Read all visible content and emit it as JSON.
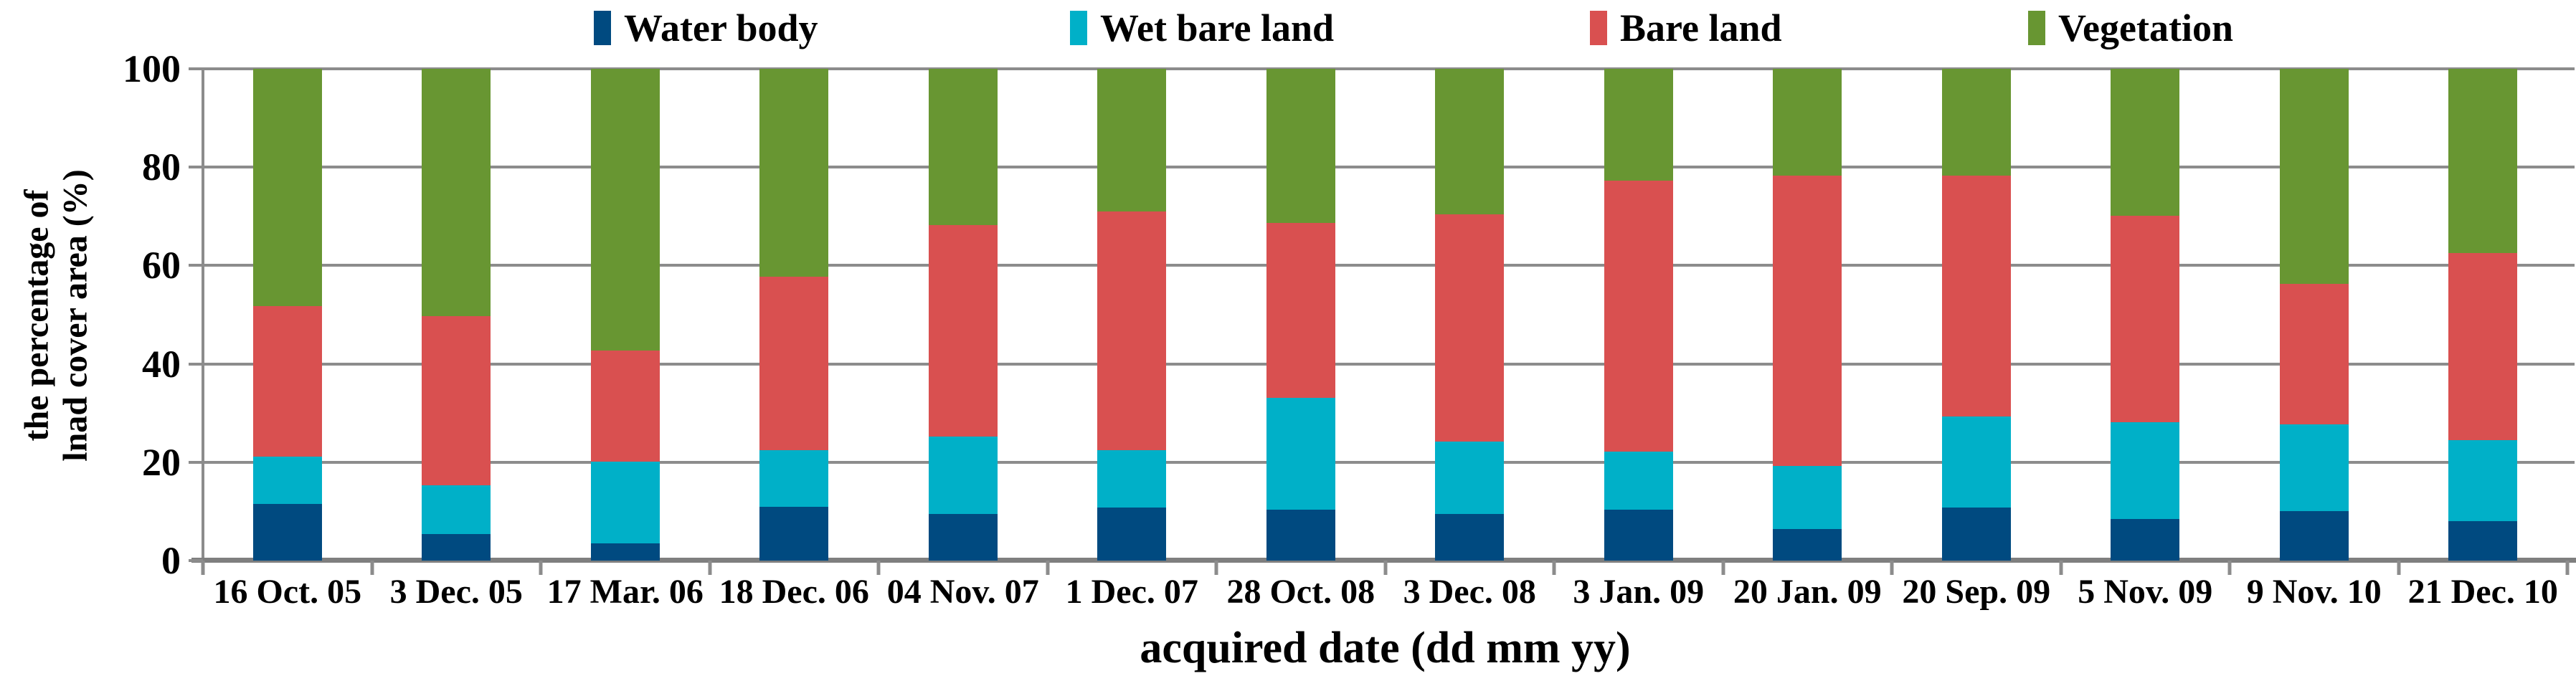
{
  "axes": {
    "y_title_line1": "the percentage of",
    "y_title_line2": "lnad cover area (%)",
    "x_title": "acquired date (dd mm yy)",
    "y_ticks": [
      "100",
      "80",
      "60",
      "40",
      "20",
      "0"
    ]
  },
  "colors": {
    "gridline": "#8c8c8c",
    "axis_line": "#7f7f7f",
    "water_body": "#004a80",
    "wet_bare_land": "#00b0c8",
    "bare_land": "#d95050",
    "vegetation": "#689632"
  },
  "chart_data": {
    "type": "bar",
    "stacked": true,
    "grid": true,
    "legend_position": "top",
    "xlabel": "acquired date (dd mm yy)",
    "ylabel": "the percentage of lnad cover area (%)",
    "ylim": [
      0,
      100
    ],
    "ytick_interval": 20,
    "categories": [
      "16 Oct. 05",
      "3 Dec. 05",
      "17 Mar. 06",
      "18 Dec. 06",
      "04 Nov. 07",
      "1 Dec. 07",
      "28 Oct. 08",
      "3 Dec. 08",
      "3 Jan. 09",
      "20 Jan. 09",
      "20 Sep. 09",
      "5 Nov. 09",
      "9 Nov. 10",
      "21 Dec. 10"
    ],
    "series": [
      {
        "name": "Water body",
        "color": "#004a80",
        "values": [
          11.5,
          5.4,
          3.5,
          11.0,
          9.5,
          10.8,
          10.3,
          9.5,
          10.4,
          6.4,
          10.8,
          8.5,
          10.0,
          8.0
        ]
      },
      {
        "name": "Wet bare land",
        "color": "#00b0c8",
        "values": [
          9.7,
          9.9,
          16.6,
          11.5,
          15.7,
          11.6,
          22.8,
          14.7,
          11.8,
          12.9,
          18.5,
          19.7,
          17.7,
          16.5
        ]
      },
      {
        "name": "Bare land",
        "color": "#d95050",
        "values": [
          30.5,
          34.4,
          22.6,
          35.2,
          43.0,
          48.6,
          35.5,
          46.2,
          55.1,
          59.0,
          49.0,
          41.9,
          28.5,
          38.1
        ]
      },
      {
        "name": "Vegetation",
        "color": "#689632",
        "values": [
          48.3,
          50.3,
          57.3,
          42.3,
          31.8,
          29.0,
          31.4,
          29.6,
          22.7,
          21.7,
          21.7,
          29.9,
          43.8,
          37.4
        ]
      }
    ]
  }
}
